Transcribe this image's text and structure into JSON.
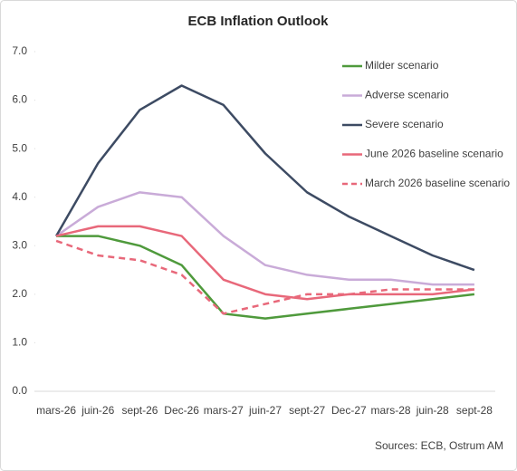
{
  "chart_data": {
    "type": "line",
    "title": "ECB Inflation Outlook",
    "source": "Sources: ECB, Ostrum AM",
    "categories": [
      "mars-26",
      "juin-26",
      "sept-26",
      "Dec-26",
      "mars-27",
      "juin-27",
      "sept-27",
      "Dec-27",
      "mars-28",
      "juin-28",
      "sept-28"
    ],
    "series": [
      {
        "name": "Milder scenario",
        "color": "#4f9a3c",
        "dash": false,
        "values": [
          3.2,
          3.2,
          3.0,
          2.6,
          1.6,
          1.5,
          1.6,
          1.7,
          1.8,
          1.9,
          2.0
        ]
      },
      {
        "name": "Adverse scenario",
        "color": "#c9abd8",
        "dash": false,
        "values": [
          3.2,
          3.8,
          4.1,
          4.0,
          3.2,
          2.6,
          2.4,
          2.3,
          2.3,
          2.2,
          2.2
        ]
      },
      {
        "name": "Severe scenario",
        "color": "#3d4b63",
        "dash": false,
        "values": [
          3.2,
          4.7,
          5.8,
          6.3,
          5.9,
          4.9,
          4.1,
          3.6,
          3.2,
          2.8,
          2.5
        ]
      },
      {
        "name": "June 2026 baseline scenario",
        "color": "#e8687a",
        "dash": false,
        "values": [
          3.2,
          3.4,
          3.4,
          3.2,
          2.3,
          2.0,
          1.9,
          2.0,
          2.0,
          2.0,
          2.1
        ]
      },
      {
        "name": "March 2026 baseline scenario",
        "color": "#e8687a",
        "dash": true,
        "values": [
          3.1,
          2.8,
          2.7,
          2.4,
          1.6,
          1.8,
          2.0,
          2.0,
          2.1,
          2.1,
          2.1
        ]
      }
    ],
    "ylim": [
      0,
      7
    ],
    "yticks": [
      {
        "value": 0,
        "label": "0.0"
      },
      {
        "value": 1,
        "label": "1.0"
      },
      {
        "value": 2,
        "label": "2.0"
      },
      {
        "value": 3,
        "label": "3.0"
      },
      {
        "value": 4,
        "label": "4.0"
      },
      {
        "value": 5,
        "label": "5.0"
      },
      {
        "value": 6,
        "label": "6.0"
      },
      {
        "value": 7,
        "label": "7.0"
      }
    ],
    "grid": false,
    "legend": "top-right"
  }
}
